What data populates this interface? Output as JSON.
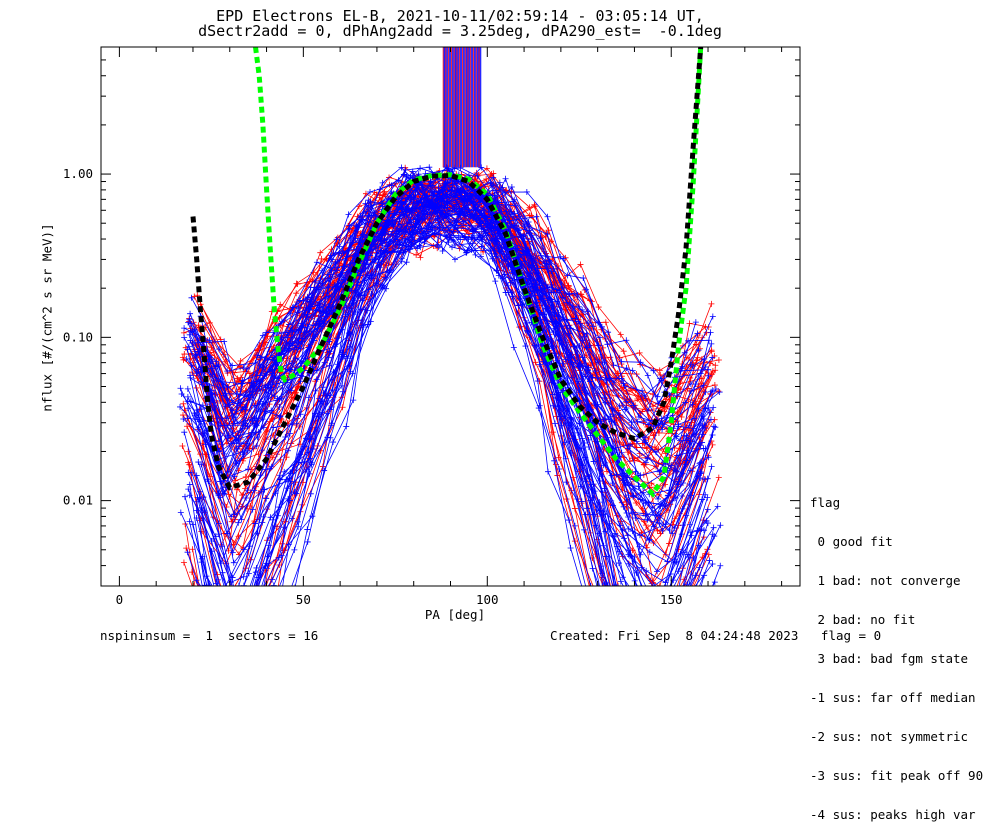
{
  "title_line1": "EPD Electrons EL-B, 2021-10-11/02:59:14 - 03:05:14 UT,",
  "title_line2": "dSectr2add = 0, dPhAng2add = 3.25deg, dPA290_est=  -0.1deg",
  "footer": {
    "left": "nspininsum =  1  sectors = 16",
    "right": "Created: Fri Sep  8 04:24:48 2023   flag = 0"
  },
  "legend": {
    "title": "flag",
    "items": [
      " 0 good fit",
      " 1 bad: not converge",
      " 2 bad: no fit",
      " 3 bad: bad fgm state",
      "-1 sus: far off median",
      "-2 sus: not symmetric",
      "-3 sus: fit peak off 90",
      "-4 sus: peaks high var"
    ]
  },
  "colors": {
    "red_traces": "#ff0000",
    "blue_traces": "#0000ff",
    "green_fit": "#00ff00",
    "black_fit": "#000000"
  },
  "chart_data": {
    "type": "line",
    "xlabel": "PA [deg]",
    "ylabel": "nflux [#/(cm^2 s sr MeV)]",
    "xlim": [
      -5,
      185
    ],
    "ylim": [
      0.003,
      6.0
    ],
    "yscale": "log",
    "xticks": [
      0,
      50,
      100,
      150
    ],
    "yticks": [
      0.01,
      0.1,
      1.0
    ],
    "ytick_labels": [
      "0.01",
      "0.10",
      "1.00"
    ],
    "trace_envelope": {
      "pa": [
        20,
        25,
        30,
        35,
        40,
        45,
        50,
        55,
        60,
        65,
        70,
        75,
        80,
        85,
        90,
        95,
        100,
        105,
        110,
        115,
        120,
        125,
        130,
        135,
        140,
        145,
        150,
        155,
        160
      ],
      "typical": [
        0.03,
        0.015,
        0.006,
        0.009,
        0.018,
        0.03,
        0.05,
        0.09,
        0.15,
        0.28,
        0.45,
        0.65,
        0.8,
        0.85,
        0.88,
        0.87,
        0.8,
        0.55,
        0.32,
        0.18,
        0.09,
        0.05,
        0.025,
        0.012,
        0.007,
        0.005,
        0.006,
        0.012,
        0.02
      ]
    },
    "series": [
      {
        "color": "green",
        "style": "dashed",
        "x": [
          37,
          38,
          39,
          40,
          41,
          42,
          43,
          44,
          45,
          47,
          50,
          55,
          60,
          65,
          70,
          75,
          80,
          85,
          90,
          95,
          100,
          105,
          110,
          115,
          120,
          125,
          130,
          135,
          140,
          145,
          148,
          150,
          152,
          154,
          156,
          158
        ],
        "y": [
          6.0,
          4.0,
          2.0,
          0.8,
          0.35,
          0.16,
          0.09,
          0.06,
          0.055,
          0.058,
          0.065,
          0.09,
          0.15,
          0.28,
          0.5,
          0.75,
          0.92,
          0.98,
          0.99,
          0.93,
          0.75,
          0.45,
          0.2,
          0.09,
          0.05,
          0.035,
          0.025,
          0.018,
          0.014,
          0.011,
          0.014,
          0.03,
          0.09,
          0.2,
          0.9,
          6.0
        ]
      },
      {
        "color": "black",
        "style": "dashed",
        "x": [
          20,
          21,
          22,
          23,
          24,
          25,
          27,
          30,
          35,
          40,
          45,
          50,
          55,
          60,
          65,
          70,
          75,
          80,
          85,
          90,
          95,
          100,
          105,
          110,
          115,
          120,
          125,
          130,
          135,
          140,
          145,
          148,
          150,
          152,
          154,
          156,
          158
        ],
        "y": [
          0.55,
          0.3,
          0.15,
          0.08,
          0.04,
          0.025,
          0.016,
          0.012,
          0.013,
          0.018,
          0.03,
          0.05,
          0.09,
          0.16,
          0.3,
          0.5,
          0.72,
          0.9,
          0.97,
          0.98,
          0.9,
          0.7,
          0.43,
          0.2,
          0.1,
          0.055,
          0.038,
          0.03,
          0.026,
          0.024,
          0.028,
          0.04,
          0.07,
          0.14,
          0.35,
          1.5,
          6.0
        ]
      }
    ]
  }
}
